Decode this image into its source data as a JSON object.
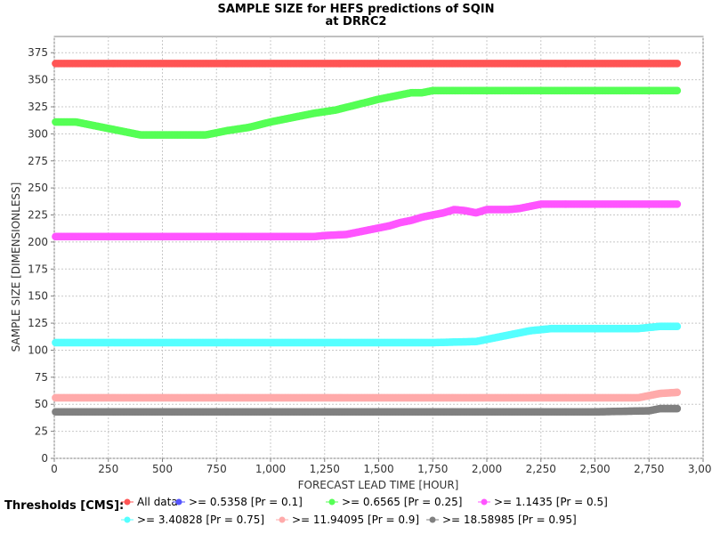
{
  "chart_data": {
    "type": "scatter",
    "title": "SAMPLE SIZE for HEFS predictions of SQIN",
    "subtitle": "at DRRC2",
    "xlabel": "FORECAST LEAD TIME [HOUR]",
    "ylabel": "SAMPLE SIZE [DIMENSIONLESS]",
    "xlim": [
      0,
      3000
    ],
    "ylim": [
      0,
      390
    ],
    "x_ticks": [
      0,
      250,
      500,
      750,
      1000,
      1250,
      1500,
      1750,
      2000,
      2250,
      2500,
      2750,
      3000
    ],
    "x_tick_labels": [
      "0",
      "250",
      "500",
      "750",
      "1,000",
      "1,250",
      "1,500",
      "1,750",
      "2,000",
      "2,250",
      "2,500",
      "2,750",
      "3,000"
    ],
    "y_ticks": [
      0,
      25,
      50,
      75,
      100,
      125,
      150,
      175,
      200,
      225,
      250,
      275,
      300,
      325,
      350,
      375
    ],
    "y_tick_labels": [
      "0",
      "25",
      "50",
      "75",
      "100",
      "125",
      "150",
      "175",
      "200",
      "225",
      "250",
      "275",
      "300",
      "325",
      "350",
      "375"
    ],
    "grid": true,
    "legend_title": "Thresholds [CMS]:",
    "legend_position": "bottom",
    "series": [
      {
        "name": "All data",
        "color": "#ff5555",
        "points": [
          [
            6,
            365
          ],
          [
            500,
            365
          ],
          [
            1000,
            365
          ],
          [
            1500,
            365
          ],
          [
            2000,
            365
          ],
          [
            2500,
            365
          ],
          [
            2880,
            365
          ]
        ]
      },
      {
        "name": ">= 0.5358 [Pr = 0.1]",
        "color": "#5555ff",
        "points": []
      },
      {
        "name": ">= 0.6565 [Pr = 0.25]",
        "color": "#55ff55",
        "points": [
          [
            6,
            311
          ],
          [
            100,
            311
          ],
          [
            150,
            309
          ],
          [
            200,
            307
          ],
          [
            250,
            305
          ],
          [
            300,
            303
          ],
          [
            350,
            301
          ],
          [
            400,
            299
          ],
          [
            500,
            299
          ],
          [
            600,
            299
          ],
          [
            700,
            299
          ],
          [
            750,
            301
          ],
          [
            800,
            303
          ],
          [
            900,
            306
          ],
          [
            1000,
            311
          ],
          [
            1100,
            315
          ],
          [
            1200,
            319
          ],
          [
            1300,
            322
          ],
          [
            1400,
            327
          ],
          [
            1500,
            332
          ],
          [
            1600,
            336
          ],
          [
            1650,
            338
          ],
          [
            1700,
            338
          ],
          [
            1750,
            340
          ],
          [
            1800,
            340
          ],
          [
            2000,
            340
          ],
          [
            2250,
            340
          ],
          [
            2500,
            340
          ],
          [
            2750,
            340
          ],
          [
            2880,
            340
          ]
        ]
      },
      {
        "name": ">= 1.1435 [Pr = 0.5]",
        "color": "#ff55ff",
        "points": [
          [
            6,
            205
          ],
          [
            250,
            205
          ],
          [
            500,
            205
          ],
          [
            750,
            205
          ],
          [
            1000,
            205
          ],
          [
            1200,
            205
          ],
          [
            1250,
            206
          ],
          [
            1350,
            207
          ],
          [
            1400,
            209
          ],
          [
            1500,
            213
          ],
          [
            1550,
            215
          ],
          [
            1600,
            218
          ],
          [
            1650,
            220
          ],
          [
            1700,
            223
          ],
          [
            1750,
            225
          ],
          [
            1800,
            227
          ],
          [
            1850,
            230
          ],
          [
            1900,
            229
          ],
          [
            1950,
            227
          ],
          [
            2000,
            230
          ],
          [
            2100,
            230
          ],
          [
            2150,
            231
          ],
          [
            2200,
            233
          ],
          [
            2250,
            235
          ],
          [
            2500,
            235
          ],
          [
            2750,
            235
          ],
          [
            2880,
            235
          ]
        ]
      },
      {
        "name": ">= 3.40828 [Pr = 0.75]",
        "color": "#55ffff",
        "points": [
          [
            6,
            107
          ],
          [
            250,
            107
          ],
          [
            500,
            107
          ],
          [
            750,
            107
          ],
          [
            1000,
            107
          ],
          [
            1250,
            107
          ],
          [
            1500,
            107
          ],
          [
            1750,
            107
          ],
          [
            1950,
            108
          ],
          [
            2000,
            110
          ],
          [
            2050,
            112
          ],
          [
            2100,
            114
          ],
          [
            2150,
            116
          ],
          [
            2200,
            118
          ],
          [
            2250,
            119
          ],
          [
            2300,
            120
          ],
          [
            2500,
            120
          ],
          [
            2700,
            120
          ],
          [
            2750,
            121
          ],
          [
            2800,
            122
          ],
          [
            2880,
            122
          ]
        ]
      },
      {
        "name": ">= 11.94095 [Pr = 0.9]",
        "color": "#ffaaaa",
        "points": [
          [
            6,
            56
          ],
          [
            250,
            56
          ],
          [
            500,
            56
          ],
          [
            750,
            56
          ],
          [
            1000,
            56
          ],
          [
            1250,
            56
          ],
          [
            1500,
            56
          ],
          [
            1750,
            56
          ],
          [
            2000,
            56
          ],
          [
            2250,
            56
          ],
          [
            2500,
            56
          ],
          [
            2700,
            56
          ],
          [
            2750,
            58
          ],
          [
            2800,
            60
          ],
          [
            2880,
            61
          ]
        ]
      },
      {
        "name": ">= 18.58985 [Pr = 0.95]",
        "color": "#808080",
        "points": [
          [
            6,
            43
          ],
          [
            250,
            43
          ],
          [
            500,
            43
          ],
          [
            750,
            43
          ],
          [
            1000,
            43
          ],
          [
            1250,
            43
          ],
          [
            1500,
            43
          ],
          [
            1750,
            43
          ],
          [
            2000,
            43
          ],
          [
            2250,
            43
          ],
          [
            2500,
            43
          ],
          [
            2750,
            44
          ],
          [
            2800,
            46
          ],
          [
            2880,
            46
          ]
        ]
      }
    ]
  }
}
